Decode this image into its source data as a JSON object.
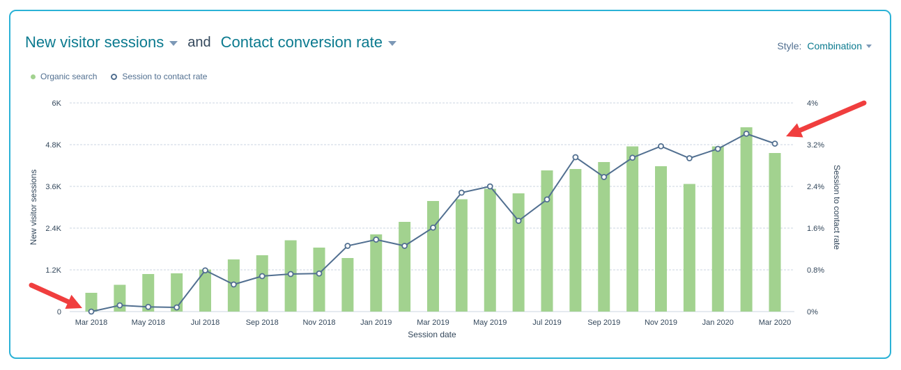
{
  "header": {
    "metric1": "New visitor sessions",
    "connector": "and",
    "metric2": "Contact conversion rate",
    "style_label": "Style:",
    "style_value": "Combination"
  },
  "legend": {
    "bar_label": "Organic search",
    "line_label": "Session to contact rate"
  },
  "colors": {
    "bar": "#a2d28f",
    "line": "#516f90",
    "accent": "#0b7a8f",
    "arrow": "#f03e3e"
  },
  "chart_data": {
    "type": "bar",
    "categories": [
      "Mar 2018",
      "Apr 2018",
      "May 2018",
      "Jun 2018",
      "Jul 2018",
      "Aug 2018",
      "Sep 2018",
      "Oct 2018",
      "Nov 2018",
      "Dec 2018",
      "Jan 2019",
      "Feb 2019",
      "Mar 2019",
      "Apr 2019",
      "May 2019",
      "Jun 2019",
      "Jul 2019",
      "Aug 2019",
      "Sep 2019",
      "Oct 2019",
      "Nov 2019",
      "Dec 2019",
      "Jan 2020",
      "Feb 2020",
      "Mar 2020"
    ],
    "x_tick_labels": [
      "Mar 2018",
      "May 2018",
      "Jul 2018",
      "Sep 2018",
      "Nov 2018",
      "Jan 2019",
      "Mar 2019",
      "May 2019",
      "Jul 2019",
      "Sep 2019",
      "Nov 2019",
      "Jan 2020",
      "Mar 2020"
    ],
    "series": [
      {
        "name": "Organic search",
        "type": "bar",
        "axis": "left",
        "values": [
          540,
          770,
          1080,
          1100,
          1210,
          1500,
          1620,
          2050,
          1840,
          1540,
          2220,
          2580,
          3180,
          3230,
          3530,
          3400,
          4060,
          4100,
          4300,
          4750,
          4180,
          3670,
          4750,
          5300,
          4560
        ]
      },
      {
        "name": "Session to contact rate",
        "type": "line",
        "axis": "right",
        "values": [
          0.0,
          0.12,
          0.09,
          0.08,
          0.79,
          0.52,
          0.68,
          0.72,
          0.73,
          1.26,
          1.38,
          1.26,
          1.61,
          2.28,
          2.4,
          1.74,
          2.15,
          2.96,
          2.58,
          2.95,
          3.17,
          2.94,
          3.12,
          3.41,
          3.22
        ]
      }
    ],
    "y_left": {
      "label": "New visitor sessions",
      "ticks": [
        "0",
        "1.2K",
        "2.4K",
        "3.6K",
        "4.8K",
        "6K"
      ],
      "ylim": [
        0,
        6000
      ]
    },
    "y_right": {
      "label": "Session to contact rate",
      "ticks": [
        "0%",
        "0.8%",
        "1.6%",
        "2.4%",
        "3.2%",
        "4%"
      ],
      "ylim": [
        0,
        4
      ]
    },
    "xlabel": "Session date",
    "grid": true,
    "legend_position": "top-left"
  }
}
